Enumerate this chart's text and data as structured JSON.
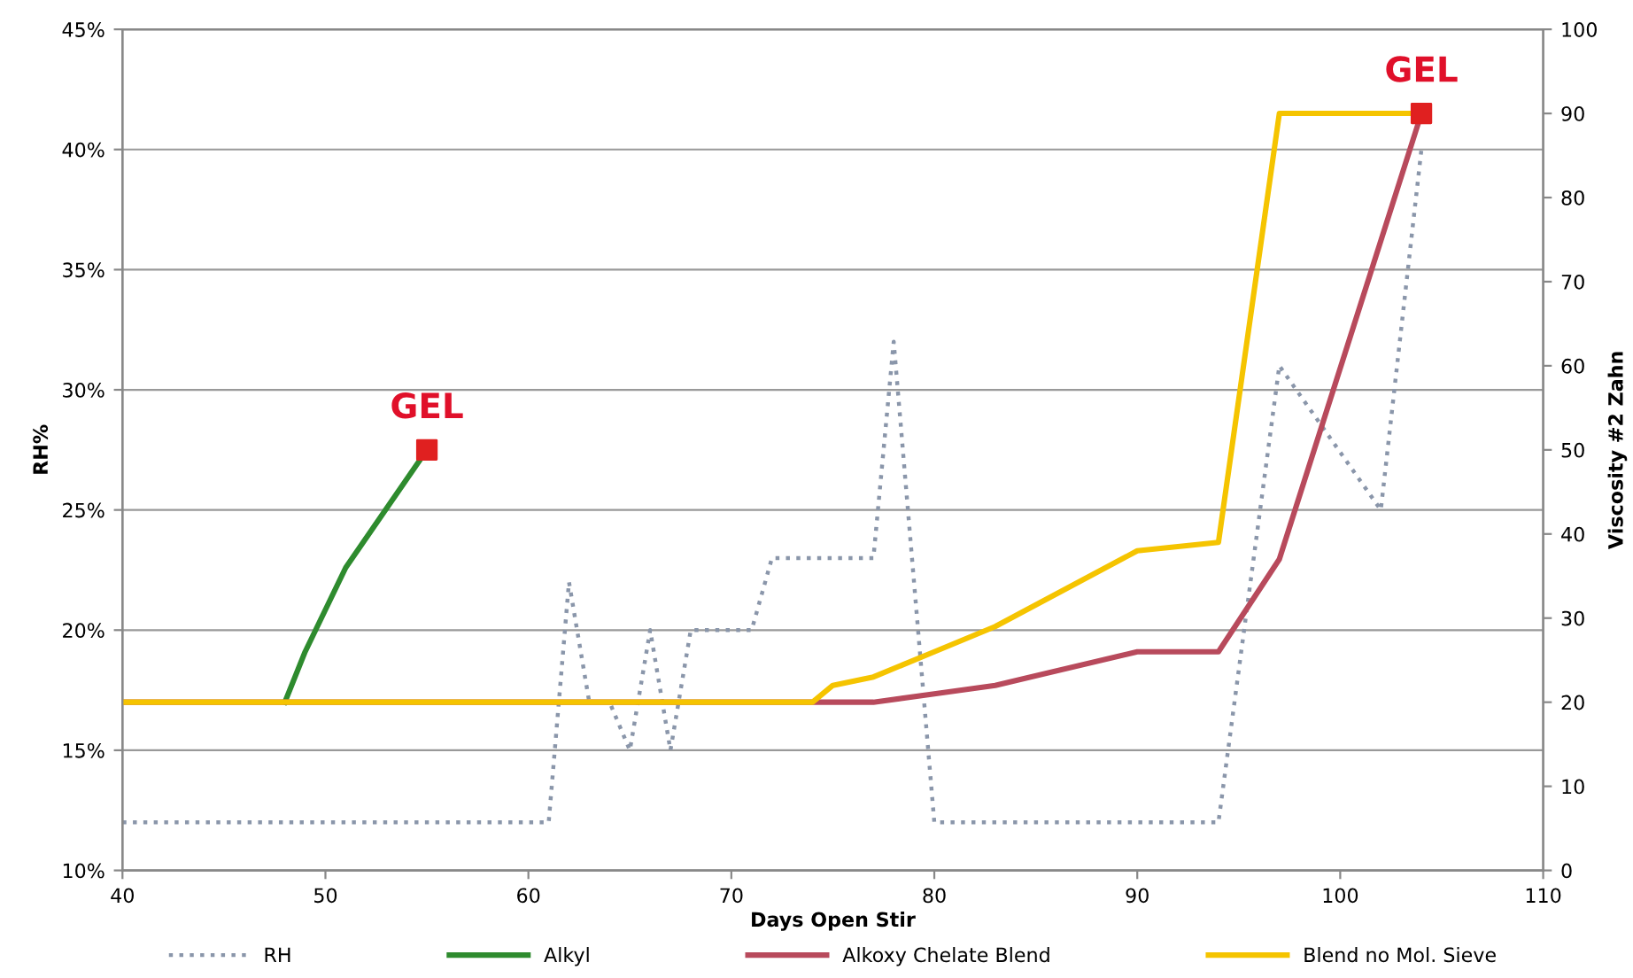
{
  "chart_data": {
    "type": "line",
    "xlabel": "Days Open Stir",
    "ylabel": "RH%",
    "y2label": "Viscosity #2 Zahn",
    "xlim": [
      40,
      110
    ],
    "xticks": [
      40,
      50,
      60,
      70,
      80,
      90,
      100,
      110
    ],
    "ylim": [
      10,
      45
    ],
    "yticks": [
      {
        "value": 10,
        "label": "10%"
      },
      {
        "value": 15,
        "label": "15%"
      },
      {
        "value": 20,
        "label": "20%"
      },
      {
        "value": 25,
        "label": "25%"
      },
      {
        "value": 30,
        "label": "30%"
      },
      {
        "value": 35,
        "label": "35%"
      },
      {
        "value": 40,
        "label": "40%"
      },
      {
        "value": 45,
        "label": "45%"
      }
    ],
    "y2lim": [
      0,
      100
    ],
    "y2ticks": [
      0,
      10,
      20,
      30,
      40,
      50,
      60,
      70,
      80,
      90,
      100
    ],
    "grid": "y",
    "legend": "bottom",
    "series": [
      {
        "name": "RH",
        "color": "#8a96aa",
        "line_style": "dotted",
        "x": [
          40,
          61,
          62,
          63,
          64,
          65,
          66,
          67,
          68,
          71,
          72,
          77,
          78,
          80,
          94,
          97,
          102,
          104
        ],
        "values": [
          12,
          12,
          22,
          17,
          17,
          15,
          20,
          15,
          20,
          20,
          23,
          23,
          32,
          12,
          12,
          31,
          25,
          40
        ]
      },
      {
        "name": "Alkyl",
        "color": "#2e8b2e",
        "axis": "y2",
        "x": [
          48,
          49,
          51,
          53,
          55
        ],
        "values": [
          20,
          26,
          36,
          43,
          50
        ]
      },
      {
        "name": "Alkoxy Chelate Blend",
        "color": "#b84a5c",
        "axis": "y2",
        "x": [
          40,
          77,
          80,
          83,
          90,
          94,
          97,
          104
        ],
        "values": [
          20,
          20,
          21,
          22,
          26,
          26,
          37,
          90
        ]
      },
      {
        "name": "Blend no Mol. Sieve",
        "color": "#f5c400",
        "axis": "y2",
        "x": [
          40,
          74,
          75,
          77,
          80,
          83,
          90,
          94,
          97,
          104
        ],
        "values": [
          20,
          20,
          22,
          23,
          26,
          29,
          38,
          39,
          90,
          90
        ]
      },
      {
        "type": "scatter",
        "color": "#e02020",
        "axis": "y2",
        "marker": "square",
        "x": [
          55,
          104
        ],
        "values": [
          50,
          90
        ]
      }
    ],
    "annotations": [
      "GEL",
      "GEL"
    ]
  }
}
